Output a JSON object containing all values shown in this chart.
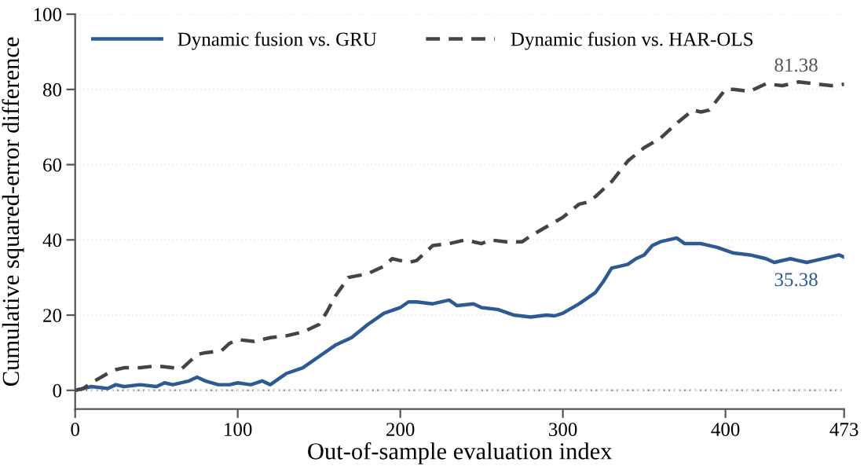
{
  "chart_data": {
    "type": "line",
    "xlabel": "Out-of-sample evaluation index",
    "ylabel": "Cumulative squared-error difference",
    "series": [
      {
        "name": "Dynamic fusion vs. GRU",
        "color": "#2e5a94",
        "line_style": "solid",
        "x": [
          0,
          5,
          10,
          20,
          25,
          30,
          40,
          50,
          55,
          60,
          70,
          75,
          80,
          88,
          95,
          100,
          108,
          115,
          120,
          125,
          130,
          140,
          150,
          160,
          170,
          180,
          190,
          200,
          205,
          210,
          220,
          230,
          235,
          245,
          250,
          260,
          270,
          280,
          290,
          295,
          300,
          310,
          320,
          325,
          330,
          335,
          340,
          345,
          350,
          355,
          360,
          370,
          375,
          385,
          395,
          405,
          415,
          425,
          430,
          440,
          450,
          455,
          465,
          470,
          473
        ],
        "values": [
          0,
          0.5,
          1,
          0.5,
          1.5,
          1,
          1.5,
          1,
          2,
          1.5,
          2.5,
          3.5,
          2.5,
          1.5,
          1.5,
          2,
          1.5,
          2.5,
          1.5,
          3,
          4.5,
          6,
          9,
          12,
          14,
          17.5,
          20.5,
          22,
          23.5,
          23.5,
          23,
          24,
          22.5,
          23,
          22,
          21.5,
          20,
          19.5,
          20,
          19.8,
          20.5,
          23,
          26,
          29,
          32.5,
          33,
          33.5,
          35,
          36,
          38.5,
          39.5,
          40.5,
          39,
          39,
          38,
          36.5,
          36,
          35,
          34,
          35,
          34,
          34.5,
          35.5,
          36,
          35.38
        ]
      },
      {
        "name": "Dynamic fusion vs. HAR-OLS",
        "color": "#444444",
        "line_style": "dashed",
        "x": [
          0,
          5,
          10,
          20,
          25,
          30,
          40,
          50,
          60,
          65,
          70,
          75,
          80,
          90,
          95,
          100,
          110,
          120,
          130,
          140,
          150,
          155,
          160,
          168,
          180,
          190,
          195,
          205,
          210,
          220,
          230,
          240,
          250,
          255,
          265,
          275,
          280,
          290,
          300,
          310,
          315,
          320,
          330,
          340,
          350,
          360,
          370,
          380,
          385,
          390,
          400,
          405,
          415,
          425,
          435,
          445,
          455,
          465,
          473
        ],
        "values": [
          0,
          0.5,
          2,
          4.5,
          5.5,
          6,
          6,
          6.5,
          6,
          5.5,
          7.5,
          9.5,
          10,
          10.5,
          12.5,
          13.5,
          13,
          14,
          14.5,
          15.5,
          17.5,
          21,
          25,
          30,
          31,
          33,
          35,
          34,
          34.5,
          38.5,
          39,
          40,
          39,
          40,
          39.5,
          39.5,
          41,
          43.5,
          46,
          49.5,
          50,
          51.5,
          55.5,
          61,
          64.5,
          67,
          71,
          74.5,
          74,
          74.5,
          80,
          80,
          79.5,
          81.5,
          81,
          82,
          81.5,
          81,
          81.38
        ]
      }
    ],
    "annotations": [
      {
        "text": "81.38",
        "x": 473,
        "y": 81.38
      },
      {
        "text": "35.38",
        "x": 473,
        "y": 35.38
      }
    ],
    "ref_lines": [
      {
        "axis": "y",
        "value": 0,
        "color": "#999999",
        "line_style": "dotted"
      }
    ],
    "xlim": [
      0,
      473
    ],
    "xticks": [
      0,
      100,
      200,
      300,
      400,
      473
    ],
    "ylim": [
      -5,
      100
    ],
    "yticks": [
      0,
      20,
      40,
      60,
      80,
      100
    ],
    "grid": "y",
    "legend": "top left"
  }
}
